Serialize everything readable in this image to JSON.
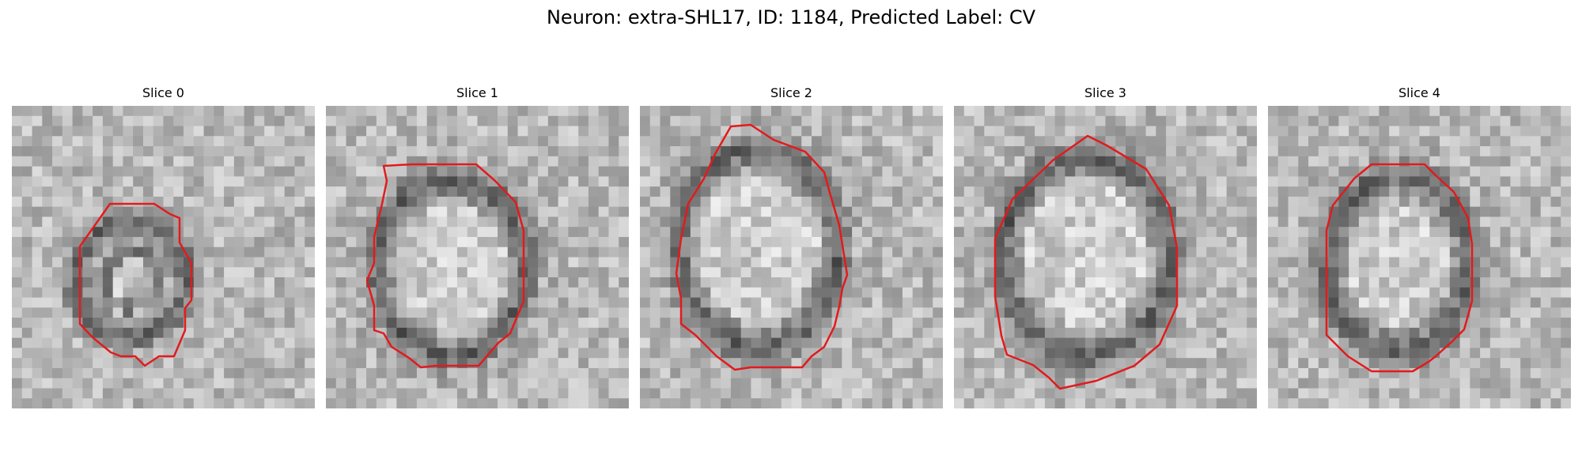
{
  "figure": {
    "title": "Neuron: extra-SHL17, ID: 1184, Predicted Label: CV"
  },
  "style": {
    "contour_color": "#e31a1c",
    "colormap": "gray"
  },
  "panels": [
    {
      "title": "Slice 0",
      "contour": "red-segmentation-contour",
      "image": "grayscale-em-slice"
    },
    {
      "title": "Slice 1",
      "contour": "red-segmentation-contour",
      "image": "grayscale-em-slice"
    },
    {
      "title": "Slice 2",
      "contour": "red-segmentation-contour",
      "image": "grayscale-em-slice"
    },
    {
      "title": "Slice 3",
      "contour": "red-segmentation-contour",
      "image": "grayscale-em-slice"
    },
    {
      "title": "Slice 4",
      "contour": "red-segmentation-contour",
      "image": "grayscale-em-slice"
    }
  ]
}
